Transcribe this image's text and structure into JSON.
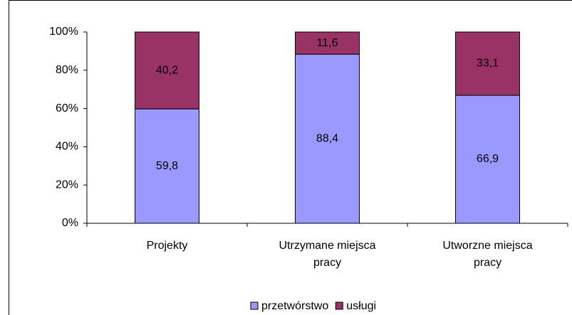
{
  "chart_data": {
    "type": "stacked_bar",
    "categories": [
      "Projekty",
      "Utrzymane miejsca pracy",
      "Utworzne  miejsca pracy"
    ],
    "series": [
      {
        "name": "przetwórstwo",
        "color": "#9999ff",
        "values": [
          59.8,
          88.4,
          66.9
        ],
        "value_labels": [
          "59,8",
          "88,4",
          "66,9"
        ]
      },
      {
        "name": "usługi",
        "color": "#993366",
        "values": [
          40.2,
          11.6,
          33.1
        ],
        "value_labels": [
          "40,2",
          "11,6",
          "33,1"
        ]
      }
    ],
    "ylim": [
      0,
      100
    ],
    "yticks": [
      {
        "value": 0,
        "label": "0%"
      },
      {
        "value": 20,
        "label": "20%"
      },
      {
        "value": 40,
        "label": "40%"
      },
      {
        "value": 60,
        "label": "60%"
      },
      {
        "value": 80,
        "label": "80%"
      },
      {
        "value": 100,
        "label": "100%"
      }
    ],
    "grid": false,
    "legend": "bottom"
  }
}
